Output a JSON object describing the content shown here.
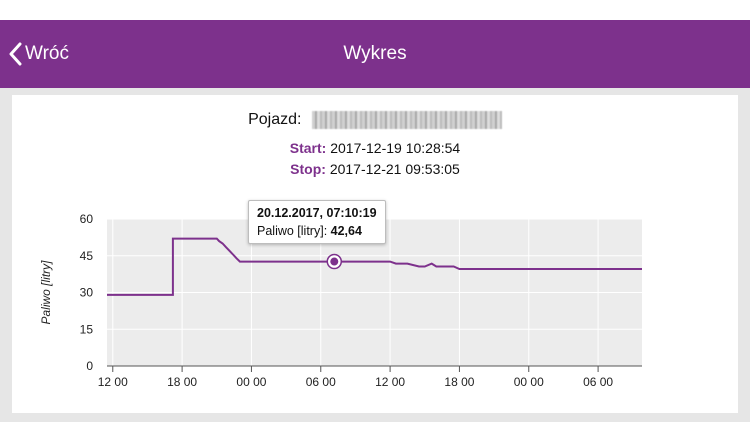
{
  "nav": {
    "back_label": "Wróć",
    "title": "Wykres"
  },
  "vehicle": {
    "label": "Pojazd:"
  },
  "period": {
    "start_label": "Start:",
    "start_value": "2017-12-19 10:28:54",
    "stop_label": "Stop:",
    "stop_value": "2017-12-21 09:53:05"
  },
  "tooltip": {
    "datetime": "20.12.2017, 07:10:19",
    "series_label": "Paliwo [litry]",
    "sep": ": ",
    "value": "42,64"
  },
  "colors": {
    "accent": "#7d318c",
    "plot_bg": "#ececec",
    "grid": "#ffffff"
  },
  "chart_data": {
    "type": "line",
    "ylabel": "Paliwo [litry]",
    "ylim": [
      0,
      60
    ],
    "yticks": [
      "0",
      "15",
      "30",
      "45",
      "60"
    ],
    "xticks": [
      "12 00",
      "18 00",
      "00 00",
      "06 00",
      "12 00",
      "18 00",
      "00 00",
      "06 00"
    ],
    "xlim_hours": [
      11.5,
      57.8
    ],
    "x_hours": [
      11.5,
      17.2,
      17.2,
      21.0,
      21.2,
      21.5,
      21.8,
      22.1,
      22.4,
      22.7,
      23.0,
      26.0,
      31.0,
      35.0,
      36.0,
      36.5,
      37.5,
      38.5,
      39.0,
      39.6,
      40.0,
      41.5,
      42.0,
      44.5,
      57.8
    ],
    "y_values": [
      29.0,
      29.0,
      52.0,
      52.0,
      51.0,
      50.0,
      48.5,
      47.0,
      45.5,
      44.0,
      42.6,
      42.6,
      42.6,
      42.6,
      42.6,
      41.8,
      41.8,
      40.6,
      40.6,
      41.8,
      40.6,
      40.6,
      39.6,
      39.6,
      39.6
    ],
    "highlight": {
      "x_hour": 31.17,
      "y": 42.64
    }
  }
}
